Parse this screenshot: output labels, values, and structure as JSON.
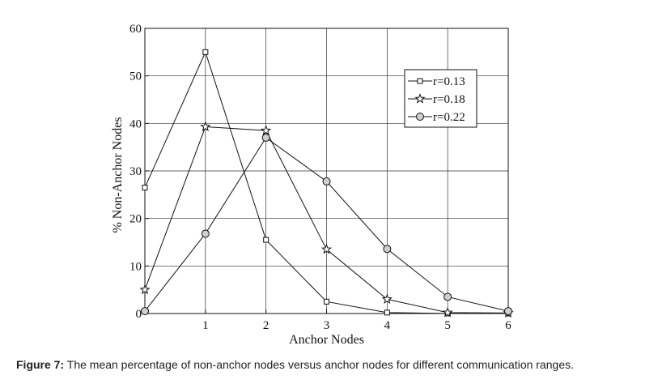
{
  "chart_data": {
    "type": "line",
    "x": [
      0,
      1,
      2,
      3,
      4,
      5,
      6
    ],
    "series": [
      {
        "name": "r=0.13",
        "marker": "square",
        "values": [
          26.5,
          55,
          15.5,
          2.5,
          0.2,
          0,
          0
        ]
      },
      {
        "name": "r=0.18",
        "marker": "star",
        "values": [
          5,
          39.3,
          38.5,
          13.5,
          3,
          0.2,
          0.1
        ]
      },
      {
        "name": "r=0.22",
        "marker": "circle",
        "values": [
          0.5,
          16.8,
          37,
          27.8,
          13.6,
          3.5,
          0.5
        ]
      }
    ],
    "xlabel": "Anchor Nodes",
    "ylabel": "% Non-Anchor Nodes",
    "xlim": [
      0,
      6
    ],
    "ylim": [
      0,
      60
    ],
    "xticks": [
      "0",
      "1",
      "2",
      "3",
      "4",
      "5",
      "6"
    ],
    "yticks": [
      "0",
      "10",
      "20",
      "30",
      "40",
      "50",
      "60"
    ],
    "grid": true,
    "legend_position": "top-right"
  },
  "caption": {
    "label": "Figure 7:",
    "text": " The mean percentage of non-anchor nodes versus anchor nodes for different communication ranges."
  }
}
